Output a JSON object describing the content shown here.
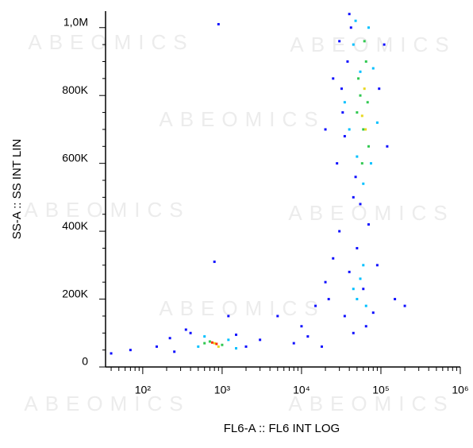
{
  "chart_data": {
    "type": "scatter",
    "watermark": "ABEOMICS",
    "x_label": "FL6-A :: FL6 INT LOG",
    "y_label": "SS-A :: SS INT LIN",
    "xscale": "log",
    "xlim": [
      34,
      1000000
    ],
    "xticks": [
      {
        "value": 100,
        "label": "10²"
      },
      {
        "value": 1000,
        "label": "10³"
      },
      {
        "value": 10000,
        "label": "10⁴"
      },
      {
        "value": 100000,
        "label": "10⁵"
      },
      {
        "value": 1000000,
        "label": "10⁶"
      }
    ],
    "xminorticks": [
      40,
      50,
      60,
      70,
      80,
      90,
      200,
      300,
      400,
      500,
      600,
      700,
      800,
      900,
      2000,
      3000,
      4000,
      5000,
      6000,
      7000,
      8000,
      9000,
      20000,
      30000,
      40000,
      50000,
      60000,
      70000,
      80000,
      90000,
      200000,
      300000,
      400000,
      500000,
      600000,
      700000,
      800000,
      900000
    ],
    "ylim": [
      0,
      1048576
    ],
    "yticks": [
      {
        "value": 0,
        "label": "0"
      },
      {
        "value": 200000,
        "label": "200K"
      },
      {
        "value": 400000,
        "label": "400K"
      },
      {
        "value": 600000,
        "label": "600K"
      },
      {
        "value": 800000,
        "label": "800K"
      },
      {
        "value": 1000000,
        "label": "1,0M"
      }
    ],
    "yminorticks": [
      50000,
      100000,
      150000,
      250000,
      300000,
      350000,
      450000,
      500000,
      550000,
      650000,
      700000,
      750000,
      850000,
      900000,
      950000
    ],
    "series": [
      {
        "color": "#1010ff",
        "x": [
          40,
          70,
          150,
          220,
          350,
          1500,
          2000,
          3000,
          5000,
          8000,
          10000,
          12000,
          15000,
          18000,
          20000,
          25000,
          30000,
          35000,
          40000,
          45000,
          50000,
          22000,
          28000,
          33000,
          38000,
          42000,
          48000,
          55000,
          70000,
          90000,
          120000,
          150000,
          200000,
          25000,
          30000,
          35000,
          40000,
          45000,
          800,
          900,
          1200,
          250,
          400,
          60000,
          80000,
          95000,
          110000,
          32000,
          65000,
          20000
        ],
        "values": [
          40000,
          50000,
          60000,
          85000,
          110000,
          95000,
          60000,
          80000,
          150000,
          70000,
          120000,
          90000,
          180000,
          60000,
          250000,
          320000,
          400000,
          150000,
          280000,
          100000,
          350000,
          200000,
          600000,
          750000,
          900000,
          1000000,
          560000,
          480000,
          420000,
          300000,
          650000,
          200000,
          180000,
          850000,
          960000,
          680000,
          1040000,
          500000,
          310000,
          1010000,
          150000,
          45000,
          100000,
          230000,
          160000,
          820000,
          950000,
          820000,
          120000,
          700000
        ]
      },
      {
        "color": "#00c0ff",
        "x": [
          500,
          600,
          1200,
          1500,
          50000,
          55000,
          60000,
          45000,
          65000,
          40000,
          45000,
          50000,
          70000,
          80000,
          60000,
          75000,
          35000,
          48000,
          90000,
          55000
        ],
        "values": [
          60000,
          90000,
          80000,
          55000,
          200000,
          260000,
          300000,
          230000,
          180000,
          700000,
          950000,
          620000,
          1000000,
          880000,
          540000,
          600000,
          780000,
          1020000,
          720000,
          870000
        ]
      },
      {
        "color": "#30c850",
        "x": [
          700,
          1000,
          600,
          55000,
          60000,
          65000,
          50000,
          70000,
          58000,
          62000,
          52000,
          68000
        ],
        "values": [
          75000,
          65000,
          70000,
          800000,
          700000,
          900000,
          750000,
          650000,
          600000,
          960000,
          850000,
          780000
        ]
      },
      {
        "color": "#e8d820",
        "x": [
          800,
          900,
          58000,
          62000,
          64000
        ],
        "values": [
          70000,
          60000,
          740000,
          820000,
          700000
        ]
      },
      {
        "color": "#ff3000",
        "x": [
          750,
          850
        ],
        "values": [
          72000,
          68000
        ]
      }
    ]
  }
}
